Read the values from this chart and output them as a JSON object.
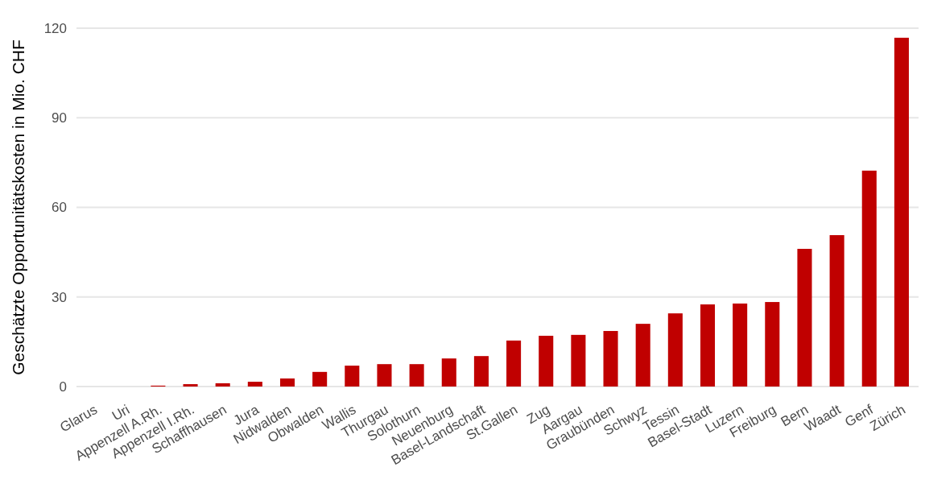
{
  "chart_data": {
    "type": "bar",
    "ylabel": "Geschätzte Opportunitätskosten in Mio. CHF",
    "categories": [
      "Glarus",
      "Uri",
      "Appenzell A.Rh.",
      "Appenzell I.Rh.",
      "Schaffhausen",
      "Jura",
      "Nidwalden",
      "Obwalden",
      "Wallis",
      "Thurgau",
      "Solothurn",
      "Neuenburg",
      "Basel-Landschaft",
      "St.Gallen",
      "Zug",
      "Aargau",
      "Graubünden",
      "Schwyz",
      "Tessin",
      "Basel-Stadt",
      "Luzern",
      "Freiburg",
      "Bern",
      "Waadt",
      "Genf",
      "Zürich"
    ],
    "values": [
      0,
      0,
      0.3,
      0.8,
      1.1,
      1.6,
      2.7,
      4.9,
      7.0,
      7.5,
      7.5,
      9.4,
      10.2,
      15.4,
      17.0,
      17.3,
      18.6,
      21.0,
      24.5,
      27.5,
      27.8,
      28.3,
      46.1,
      50.7,
      72.3,
      116.8
    ],
    "color": "#c00000",
    "ylim": [
      0,
      120
    ],
    "yticks": [
      0,
      30,
      60,
      90,
      120
    ],
    "grid": "y"
  }
}
